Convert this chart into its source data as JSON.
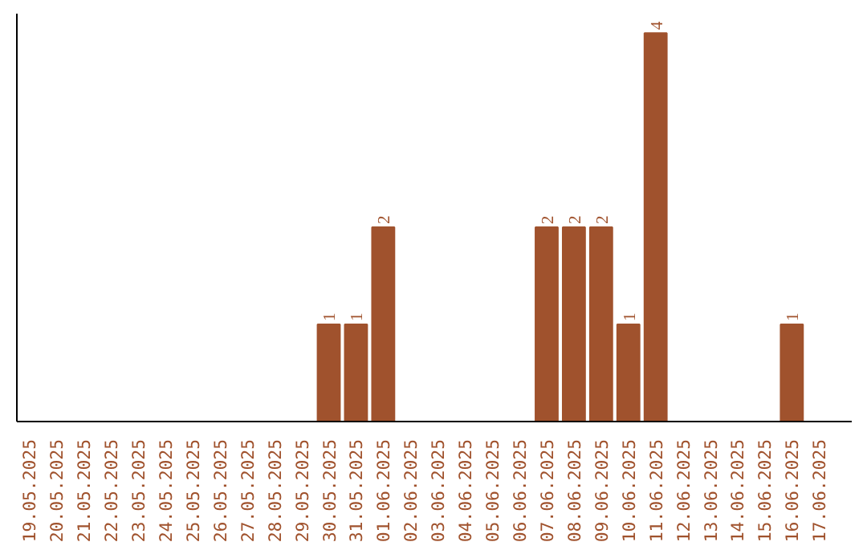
{
  "chart_data": {
    "type": "bar",
    "categories": [
      "19.05.2025",
      "20.05.2025",
      "21.05.2025",
      "22.05.2025",
      "23.05.2025",
      "24.05.2025",
      "25.05.2025",
      "26.05.2025",
      "27.05.2025",
      "28.05.2025",
      "29.05.2025",
      "30.05.2025",
      "31.05.2025",
      "01.06.2025",
      "02.06.2025",
      "03.06.2025",
      "04.06.2025",
      "05.06.2025",
      "06.06.2025",
      "07.06.2025",
      "08.06.2025",
      "09.06.2025",
      "10.06.2025",
      "11.06.2025",
      "12.06.2025",
      "13.06.2025",
      "14.06.2025",
      "15.06.2025",
      "16.06.2025",
      "17.06.2025"
    ],
    "values": [
      0,
      0,
      0,
      0,
      0,
      0,
      0,
      0,
      0,
      0,
      0,
      1,
      1,
      2,
      0,
      0,
      0,
      0,
      0,
      2,
      2,
      2,
      1,
      4,
      0,
      0,
      0,
      0,
      1,
      0
    ],
    "value_labels": [
      null,
      null,
      null,
      null,
      null,
      null,
      null,
      null,
      null,
      null,
      null,
      "1",
      "1",
      "2",
      null,
      null,
      null,
      null,
      null,
      "2",
      "2",
      "2",
      "1",
      "4",
      null,
      null,
      null,
      null,
      "1",
      null
    ],
    "color": "#a0522d",
    "grid": false,
    "tick_labels": "x"
  }
}
